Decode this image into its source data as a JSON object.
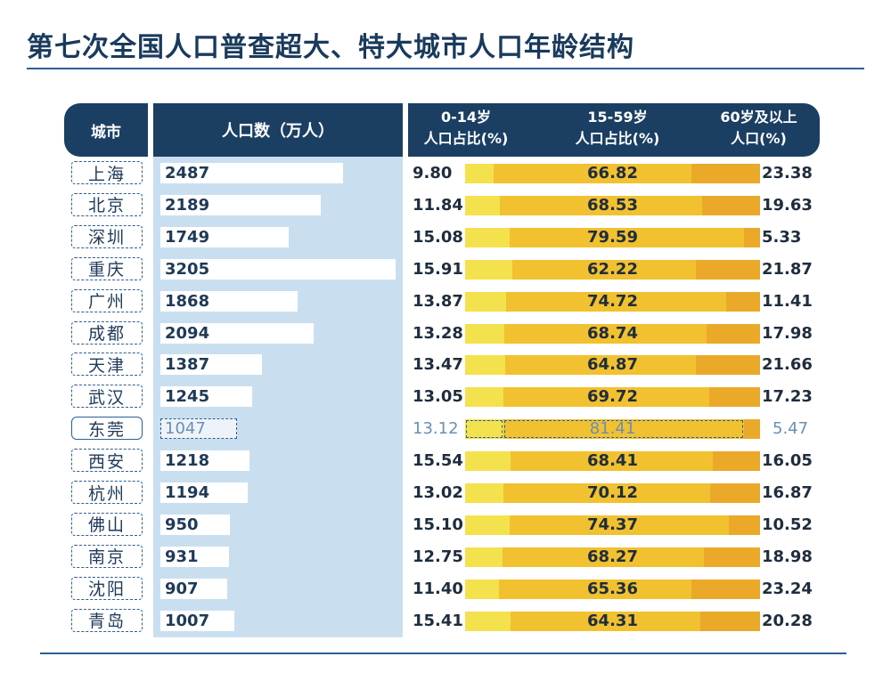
{
  "title": "第七次全国人口普查超大、特大城市人口年龄结构",
  "headers": {
    "city": "城市",
    "population": "人口数（万人）",
    "age_0_14": "0-14岁\n人口占比(%)",
    "age_15_59": "15-59岁\n人口占比(%)",
    "age_60_plus": "60岁及以上\n人口(%)"
  },
  "colors": {
    "header_bg": "#1b3f63",
    "population_panel": "#c9dff0",
    "age_0_14": "#f3e24d",
    "age_15_59": "#f2c130",
    "age_60_plus": "#eba92a"
  },
  "chart_data": {
    "type": "table",
    "title": "第七次全国人口普查超大、特大城市人口年龄结构",
    "columns": [
      "城市",
      "人口数（万人）",
      "0-14岁人口占比(%)",
      "15-59岁人口占比(%)",
      "60岁及以上人口(%)"
    ],
    "highlighted_city": "东莞",
    "pop_max": 3205,
    "rows": [
      {
        "city": "上海",
        "population": "2487",
        "age_0_14": "9.80",
        "age_15_59": "66.82",
        "age_60_plus": "23.38"
      },
      {
        "city": "北京",
        "population": "2189",
        "age_0_14": "11.84",
        "age_15_59": "68.53",
        "age_60_plus": "19.63"
      },
      {
        "city": "深圳",
        "population": "1749",
        "age_0_14": "15.08",
        "age_15_59": "79.59",
        "age_60_plus": "5.33"
      },
      {
        "city": "重庆",
        "population": "3205",
        "age_0_14": "15.91",
        "age_15_59": "62.22",
        "age_60_plus": "21.87"
      },
      {
        "city": "广州",
        "population": "1868",
        "age_0_14": "13.87",
        "age_15_59": "74.72",
        "age_60_plus": "11.41"
      },
      {
        "city": "成都",
        "population": "2094",
        "age_0_14": "13.28",
        "age_15_59": "68.74",
        "age_60_plus": "17.98"
      },
      {
        "city": "天津",
        "population": "1387",
        "age_0_14": "13.47",
        "age_15_59": "64.87",
        "age_60_plus": "21.66"
      },
      {
        "city": "武汉",
        "population": "1245",
        "age_0_14": "13.05",
        "age_15_59": "69.72",
        "age_60_plus": "17.23"
      },
      {
        "city": "东莞",
        "population": "1047",
        "age_0_14": "13.12",
        "age_15_59": "81.41",
        "age_60_plus": "5.47"
      },
      {
        "city": "西安",
        "population": "1218",
        "age_0_14": "15.54",
        "age_15_59": "68.41",
        "age_60_plus": "16.05"
      },
      {
        "city": "杭州",
        "population": "1194",
        "age_0_14": "13.02",
        "age_15_59": "70.12",
        "age_60_plus": "16.87"
      },
      {
        "city": "佛山",
        "population": "950",
        "age_0_14": "15.10",
        "age_15_59": "74.37",
        "age_60_plus": "10.52"
      },
      {
        "city": "南京",
        "population": "931",
        "age_0_14": "12.75",
        "age_15_59": "68.27",
        "age_60_plus": "18.98"
      },
      {
        "city": "沈阳",
        "population": "907",
        "age_0_14": "11.40",
        "age_15_59": "65.36",
        "age_60_plus": "23.24"
      },
      {
        "city": "青岛",
        "population": "1007",
        "age_0_14": "15.41",
        "age_15_59": "64.31",
        "age_60_plus": "20.28"
      }
    ]
  }
}
